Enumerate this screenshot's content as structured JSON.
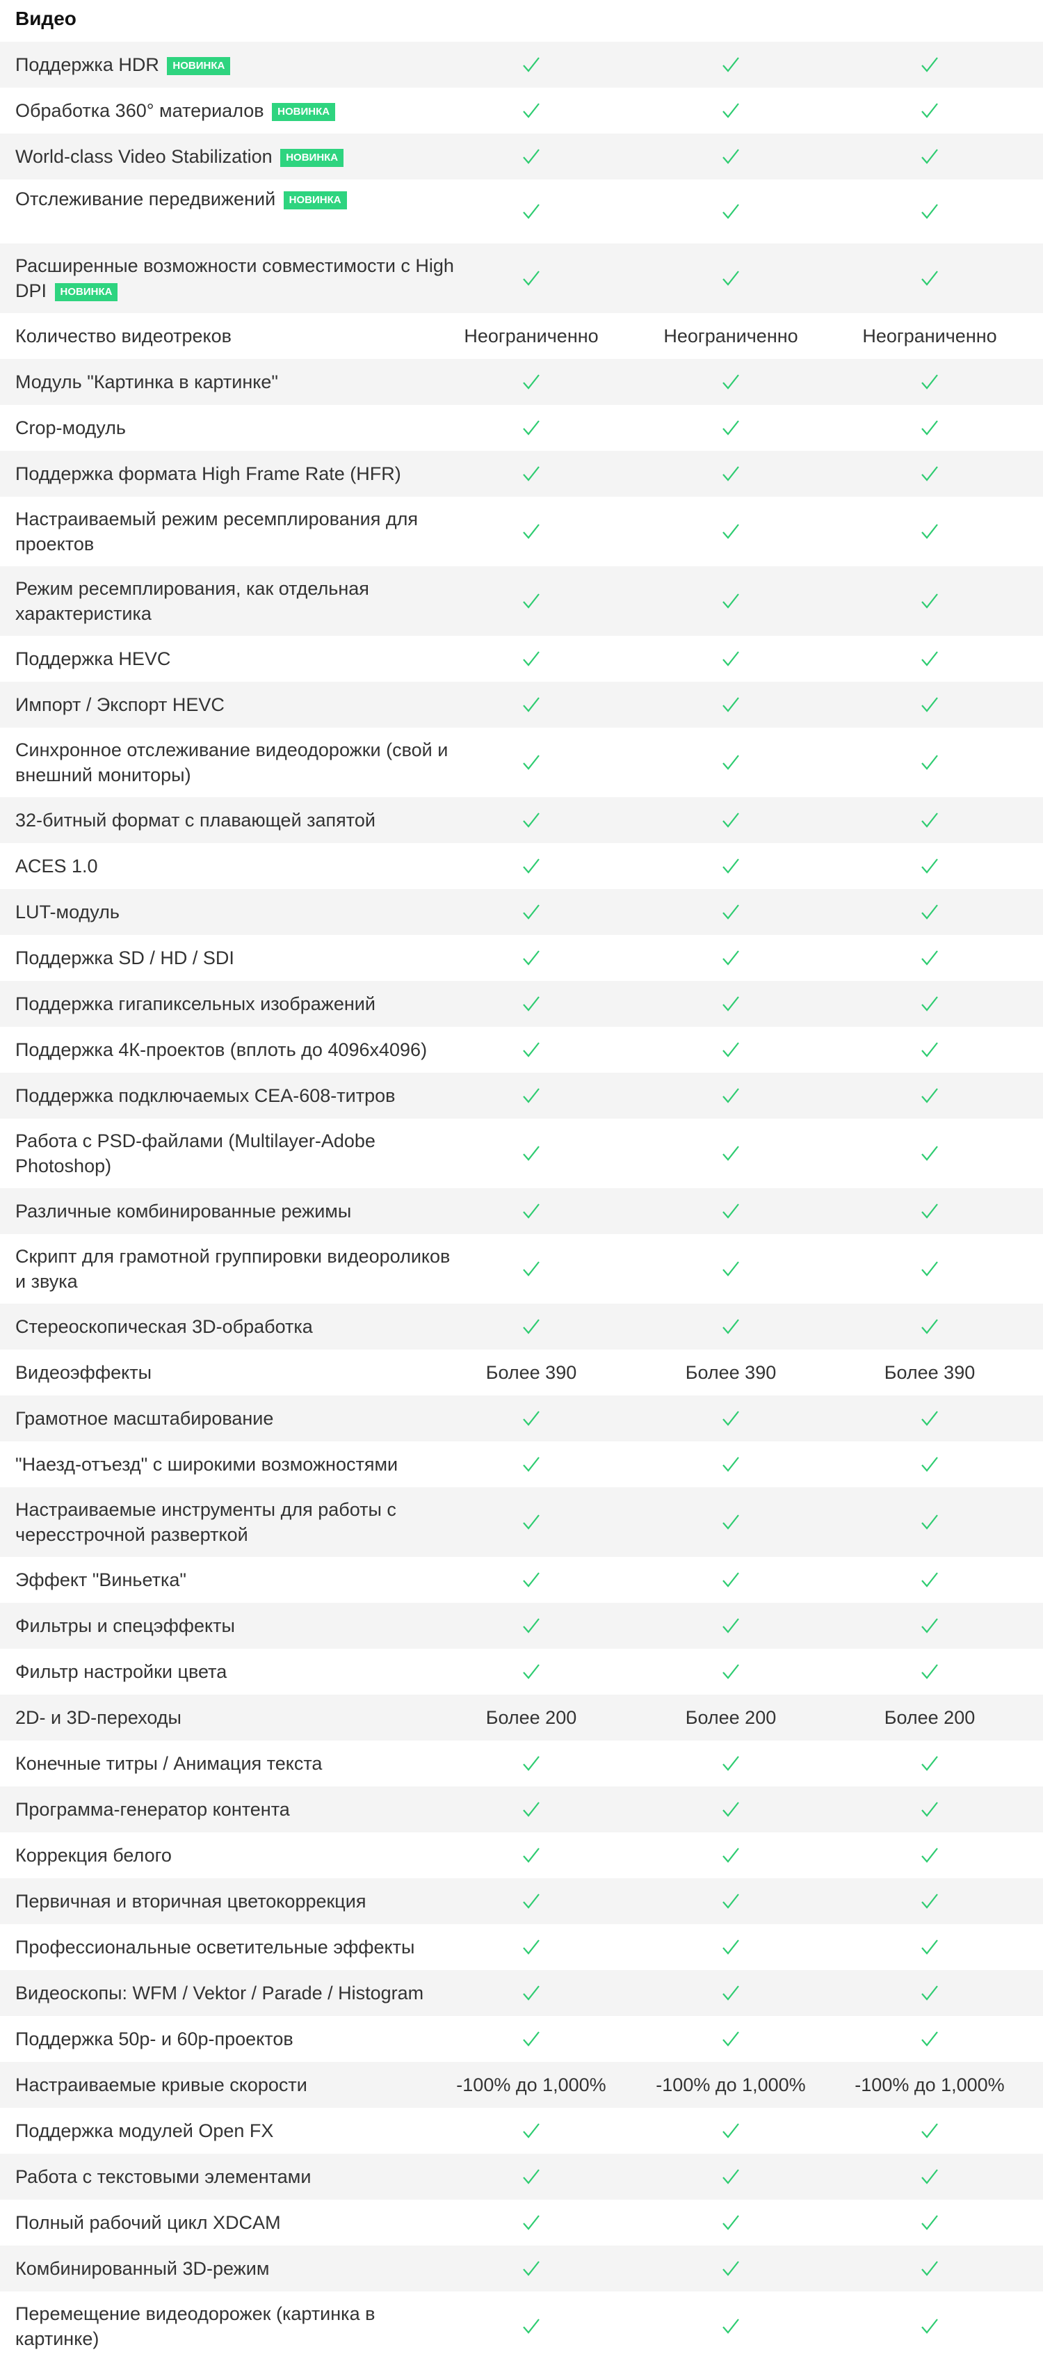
{
  "section": {
    "title": "Видео"
  },
  "badge_text": "НОВИНКА",
  "colors": {
    "accent": "#2ed47f",
    "row_alt": "#f4f4f4",
    "check": "#2ecc71"
  },
  "rows": [
    {
      "label": "Поддержка HDR",
      "badge": true,
      "values": [
        "check",
        "check",
        "check"
      ]
    },
    {
      "label": "Обработка 360° материалов",
      "badge": true,
      "values": [
        "check",
        "check",
        "check"
      ]
    },
    {
      "label": "World-class Video Stabilization",
      "badge": true,
      "values": [
        "check",
        "check",
        "check"
      ]
    },
    {
      "label": "Отслеживание передвижений",
      "badge": true,
      "size": "tall",
      "values": [
        "check",
        "check",
        "check"
      ]
    },
    {
      "label": "Расширенные возможности совместимости с High DPI",
      "badge": true,
      "size": "double",
      "values": [
        "check",
        "check",
        "check"
      ]
    },
    {
      "label": "Количество видеотреков",
      "values": [
        "Неограниченно",
        "Неограниченно",
        "Неограниченно"
      ]
    },
    {
      "label": "Модуль \"Картинка в картинке\"",
      "values": [
        "check",
        "check",
        "check"
      ]
    },
    {
      "label": "Crop-модуль",
      "values": [
        "check",
        "check",
        "check"
      ]
    },
    {
      "label": "Поддержка формата High Frame Rate (HFR)",
      "values": [
        "check",
        "check",
        "check"
      ]
    },
    {
      "label": "Настраиваемый режим ресемплирования для проектов",
      "size": "double",
      "values": [
        "check",
        "check",
        "check"
      ]
    },
    {
      "label": "Режим ресемплирования, как отдельная характеристика",
      "size": "double",
      "values": [
        "check",
        "check",
        "check"
      ]
    },
    {
      "label": "Поддержка HEVC",
      "values": [
        "check",
        "check",
        "check"
      ]
    },
    {
      "label": "Импорт / Экспорт HEVC",
      "values": [
        "check",
        "check",
        "check"
      ]
    },
    {
      "label": "Синхронное отслеживание видеодорожки (свой и внешний мониторы)",
      "size": "double",
      "values": [
        "check",
        "check",
        "check"
      ]
    },
    {
      "label": "32-битный формат с плавающей запятой",
      "values": [
        "check",
        "check",
        "check"
      ]
    },
    {
      "label": "ACES 1.0",
      "values": [
        "check",
        "check",
        "check"
      ]
    },
    {
      "label": "LUT-модуль",
      "values": [
        "check",
        "check",
        "check"
      ]
    },
    {
      "label": "Поддержка SD / HD / SDI",
      "values": [
        "check",
        "check",
        "check"
      ]
    },
    {
      "label": "Поддержка гигапиксельных изображений",
      "values": [
        "check",
        "check",
        "check"
      ]
    },
    {
      "label": "Поддержка 4К-проектов (вплоть до 4096x4096)",
      "values": [
        "check",
        "check",
        "check"
      ]
    },
    {
      "label": "Поддержка подключаемых CEA-608-титров",
      "values": [
        "check",
        "check",
        "check"
      ]
    },
    {
      "label": "Работа с PSD-файлами (Multilayer-Adobe Photoshop)",
      "size": "double",
      "values": [
        "check",
        "check",
        "check"
      ]
    },
    {
      "label": "Различные комбинированные режимы",
      "values": [
        "check",
        "check",
        "check"
      ]
    },
    {
      "label": "Скрипт для грамотной группировки видеороликов и звука",
      "size": "double",
      "values": [
        "check",
        "check",
        "check"
      ]
    },
    {
      "label": "Стереоскопическая 3D-обработка",
      "values": [
        "check",
        "check",
        "check"
      ]
    },
    {
      "label": "Видеоэффекты",
      "values": [
        "Более 390",
        "Более 390",
        "Более 390"
      ]
    },
    {
      "label": "Грамотное масштабирование",
      "values": [
        "check",
        "check",
        "check"
      ]
    },
    {
      "label": "\"Наезд-отъезд\" с широкими возможностями",
      "values": [
        "check",
        "check",
        "check"
      ]
    },
    {
      "label": "Настраиваемые инструменты для работы с чересстрочной разверткой",
      "size": "double",
      "values": [
        "check",
        "check",
        "check"
      ]
    },
    {
      "label": "Эффект \"Виньетка\"",
      "values": [
        "check",
        "check",
        "check"
      ]
    },
    {
      "label": "Фильтры и спецэффекты",
      "values": [
        "check",
        "check",
        "check"
      ]
    },
    {
      "label": "Фильтр настройки цвета",
      "values": [
        "check",
        "check",
        "check"
      ]
    },
    {
      "label": "2D- и 3D-переходы",
      "values": [
        "Более 200",
        "Более 200",
        "Более 200"
      ]
    },
    {
      "label": "Конечные титры / Анимация текста",
      "values": [
        "check",
        "check",
        "check"
      ]
    },
    {
      "label": "Программа-генератор контента",
      "values": [
        "check",
        "check",
        "check"
      ]
    },
    {
      "label": "Коррекция белого",
      "values": [
        "check",
        "check",
        "check"
      ]
    },
    {
      "label": "Первичная и вторичная цветокоррекция",
      "values": [
        "check",
        "check",
        "check"
      ]
    },
    {
      "label": "Профессиональные осветительные эффекты",
      "values": [
        "check",
        "check",
        "check"
      ]
    },
    {
      "label": "Видеоскопы: WFM / Vektor / Parade / Histogram",
      "values": [
        "check",
        "check",
        "check"
      ]
    },
    {
      "label": "Поддержка 50p- и 60p-проектов",
      "values": [
        "check",
        "check",
        "check"
      ]
    },
    {
      "label": "Настраиваемые кривые скорости",
      "values": [
        "-100% до 1,000%",
        "-100% до 1,000%",
        "-100% до 1,000%"
      ]
    },
    {
      "label": "Поддержка модулей Open FX",
      "values": [
        "check",
        "check",
        "check"
      ]
    },
    {
      "label": "Работа с текстовыми элементами",
      "values": [
        "check",
        "check",
        "check"
      ]
    },
    {
      "label": "Полный рабочий цикл XDCAM",
      "values": [
        "check",
        "check",
        "check"
      ]
    },
    {
      "label": "Комбинированный 3D-режим",
      "values": [
        "check",
        "check",
        "check"
      ]
    },
    {
      "label": "Перемещение видеодорожек (картинка в картинке)",
      "size": "double",
      "values": [
        "check",
        "check",
        "check"
      ]
    }
  ]
}
